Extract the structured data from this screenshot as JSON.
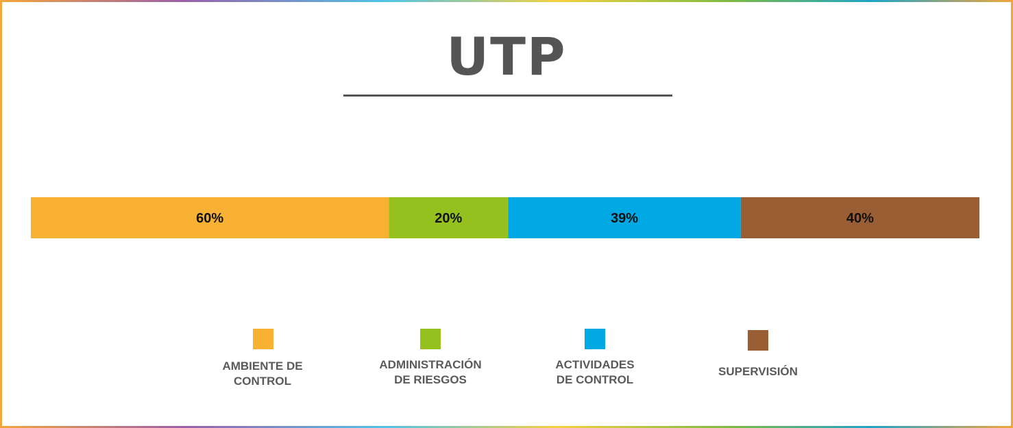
{
  "chart_data": {
    "type": "bar",
    "orientation": "horizontal-stacked",
    "title": "UTP",
    "categories": [
      "AMBIENTE DE CONTROL",
      "ADMINISTRACIÓN DE RIESGOS",
      "ACTIVIDADES DE CONTROL",
      "SUPERVISIÓN"
    ],
    "values": [
      60,
      20,
      39,
      40
    ],
    "data_labels": [
      "60%",
      "20%",
      "39%",
      "40%"
    ],
    "colors": [
      "#f8b133",
      "#95c11f",
      "#00a8e4",
      "#9a5e35"
    ],
    "legend": {
      "placement": "bottom",
      "entries": [
        {
          "line1": "AMBIENTE DE",
          "line2": "CONTROL"
        },
        {
          "line1": "ADMINISTRACIÓN",
          "line2": "DE RIESGOS"
        },
        {
          "line1": "ACTIVIDADES",
          "line2": "DE CONTROL"
        },
        {
          "line1": "SUPERVISIÓN",
          "line2": ""
        }
      ]
    },
    "grid": false
  }
}
